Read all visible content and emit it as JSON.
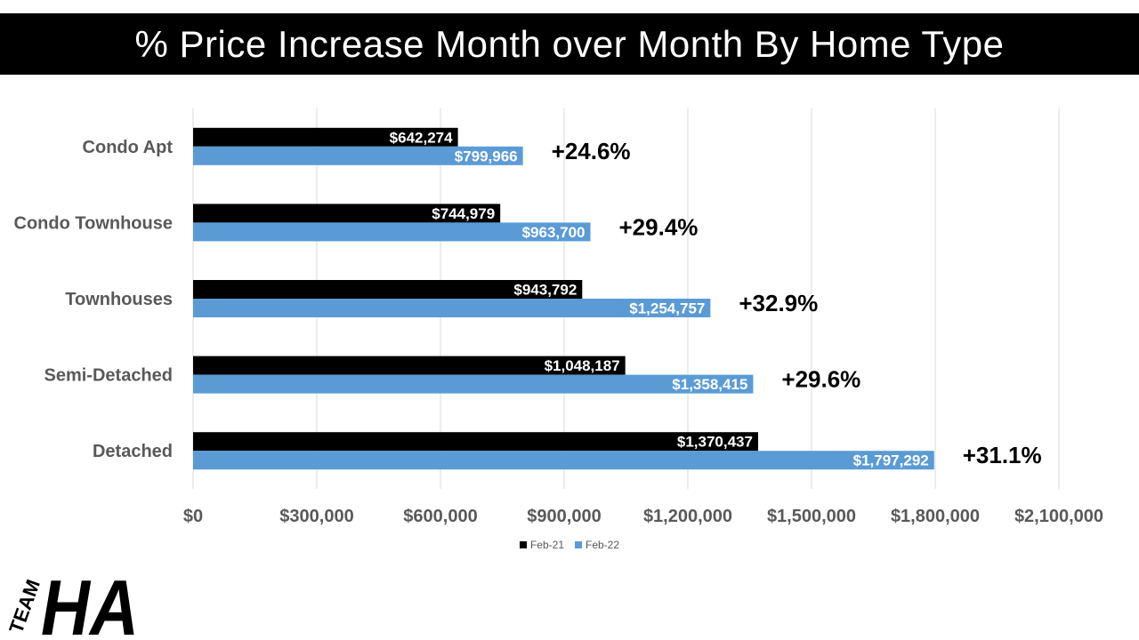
{
  "chart_data": {
    "type": "bar",
    "orientation": "horizontal",
    "title": "% Price Increase Month over Month By Home Type",
    "categories": [
      "Condo Apt",
      "Condo Townhouse",
      "Townhouses",
      "Semi-Detached",
      "Detached"
    ],
    "series": [
      {
        "name": "Feb-21",
        "color": "#000000",
        "values": [
          642274,
          744979,
          943792,
          1048187,
          1370437
        ],
        "labels": [
          "$642,274",
          "$744,979",
          "$943,792",
          "$1,048,187",
          "$1,370,437"
        ]
      },
      {
        "name": "Feb-22",
        "color": "#5b9bd5",
        "values": [
          799966,
          963700,
          1254757,
          1358415,
          1797292
        ],
        "labels": [
          "$799,966",
          "$963,700",
          "$1,254,757",
          "$1,358,415",
          "$1,797,292"
        ]
      }
    ],
    "annotations": [
      "+24.6%",
      "+29.4%",
      "+32.9%",
      "+29.6%",
      "+31.1%"
    ],
    "xlim": [
      0,
      2100000
    ],
    "xticks": [
      0,
      300000,
      600000,
      900000,
      1200000,
      1500000,
      1800000,
      2100000
    ],
    "xtick_labels": [
      "$0",
      "$300,000",
      "$600,000",
      "$900,000",
      "$1,200,000",
      "$1,500,000",
      "$1,800,000",
      "$2,100,000"
    ],
    "grid": "vertical",
    "legend_position": "bottom"
  },
  "logo": {
    "text_small": "TEAM",
    "text_large": "HA"
  }
}
